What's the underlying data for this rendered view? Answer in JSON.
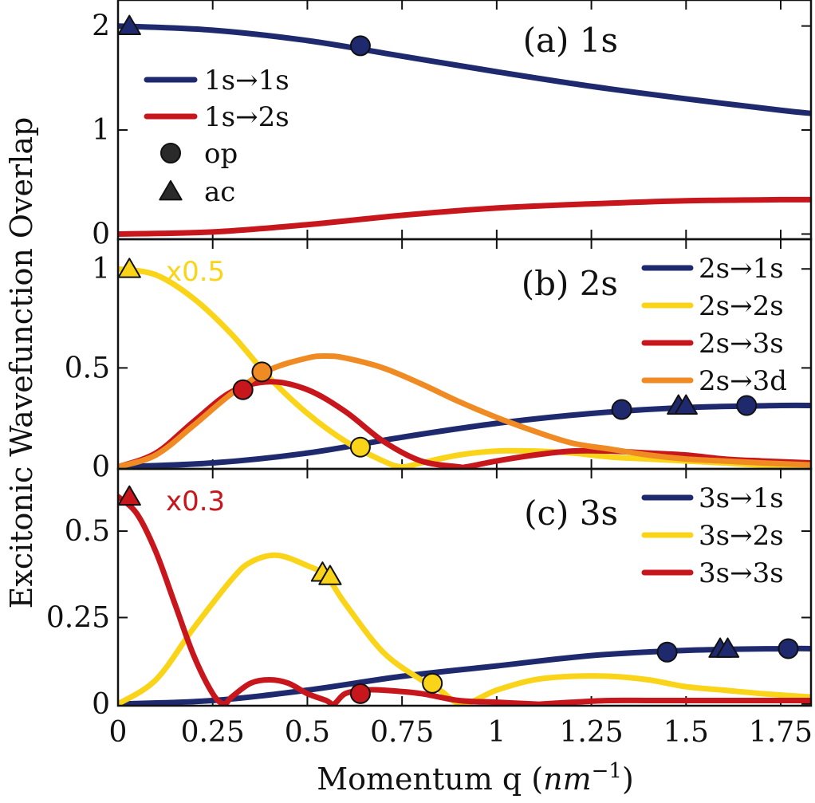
{
  "chart_data": {
    "type": "line",
    "x_axis": {
      "label": "Momentum q (nm⁻¹)",
      "label_prefix": "Momentum q ",
      "label_unit_base": "nm",
      "label_unit_exp": "−1",
      "range": [
        0,
        1.83
      ],
      "ticks": [
        0,
        0.25,
        0.5,
        0.75,
        1,
        1.25,
        1.5,
        1.75
      ],
      "tick_labels": [
        "0",
        "0.25",
        "0.5",
        "0.75",
        "1",
        "1.25",
        "1.5",
        "1.75"
      ]
    },
    "y_label": "Excitonic Wavefunction Overlap",
    "marker_legend": [
      {
        "shape": "circle",
        "label": "op"
      },
      {
        "shape": "triangle",
        "label": "ac"
      }
    ],
    "panels": [
      {
        "id": "a",
        "label": "(a)  1s",
        "ylim": [
          -0.05,
          2.25
        ],
        "yticks": [
          0,
          1,
          2
        ],
        "ytick_labels": [
          "0",
          "1",
          "2"
        ],
        "scale_note": null,
        "series": [
          {
            "name": "1s→1s",
            "color": "#1f2a6e",
            "x": [
              0,
              0.25,
              0.5,
              0.75,
              1,
              1.25,
              1.5,
              1.75,
              1.83
            ],
            "y": [
              2.0,
              1.96,
              1.86,
              1.71,
              1.56,
              1.42,
              1.3,
              1.19,
              1.16
            ],
            "markers": [
              {
                "shape": "circle",
                "x": 0.64,
                "y": 1.81
              },
              {
                "shape": "triangle",
                "x": 0.03,
                "y": 2.0
              }
            ]
          },
          {
            "name": "1s→2s",
            "color": "#c8161d",
            "x": [
              0,
              0.25,
              0.5,
              0.75,
              1,
              1.25,
              1.5,
              1.75,
              1.83
            ],
            "y": [
              0.0,
              0.02,
              0.09,
              0.18,
              0.25,
              0.29,
              0.32,
              0.33,
              0.33
            ],
            "markers": []
          }
        ]
      },
      {
        "id": "b",
        "label": "(b)  2s",
        "ylim": [
          -0.01,
          1.15
        ],
        "yticks": [
          0,
          0.5,
          1
        ],
        "ytick_labels": [
          "0",
          "0.5",
          "1"
        ],
        "scale_note": {
          "text": "x0.5",
          "color": "#f9d418"
        },
        "series": [
          {
            "name": "2s→1s",
            "color": "#1f2a6e",
            "x": [
              0,
              0.25,
              0.5,
              0.75,
              1,
              1.25,
              1.5,
              1.75,
              1.83
            ],
            "y": [
              0.0,
              0.02,
              0.07,
              0.15,
              0.22,
              0.27,
              0.3,
              0.31,
              0.31
            ],
            "markers": [
              {
                "shape": "circle",
                "x": 1.33,
                "y": 0.29
              },
              {
                "shape": "triangle",
                "x": 1.48,
                "y": 0.31
              },
              {
                "shape": "triangle",
                "x": 1.5,
                "y": 0.31
              },
              {
                "shape": "circle",
                "x": 1.66,
                "y": 0.31
              }
            ]
          },
          {
            "name": "2s→2s",
            "color": "#f9d418",
            "x": [
              0,
              0.1,
              0.2,
              0.3,
              0.4,
              0.5,
              0.6,
              0.7,
              0.75,
              0.8,
              0.9,
              1.0,
              1.1,
              1.2,
              1.3,
              1.4,
              1.5,
              1.6,
              1.7,
              1.83
            ],
            "y": [
              1.0,
              0.97,
              0.85,
              0.67,
              0.45,
              0.27,
              0.13,
              0.03,
              0.0,
              0.02,
              0.06,
              0.08,
              0.08,
              0.07,
              0.05,
              0.04,
              0.03,
              0.02,
              0.01,
              0.01
            ],
            "markers": [
              {
                "shape": "triangle",
                "x": 0.03,
                "y": 1.0
              },
              {
                "shape": "circle",
                "x": 0.64,
                "y": 0.1
              }
            ]
          },
          {
            "name": "2s→3s",
            "color": "#c8161d",
            "x": [
              0,
              0.1,
              0.2,
              0.3,
              0.4,
              0.5,
              0.6,
              0.7,
              0.8,
              0.9,
              0.92,
              1.0,
              1.1,
              1.2,
              1.3,
              1.4,
              1.5,
              1.6,
              1.7,
              1.83
            ],
            "y": [
              0.0,
              0.07,
              0.23,
              0.38,
              0.43,
              0.39,
              0.28,
              0.13,
              0.03,
              0.0,
              0.0,
              0.03,
              0.06,
              0.08,
              0.08,
              0.07,
              0.06,
              0.04,
              0.03,
              0.02
            ],
            "markers": [
              {
                "shape": "circle",
                "x": 0.33,
                "y": 0.39
              }
            ]
          },
          {
            "name": "2s→3d",
            "color": "#f08a22",
            "x": [
              0,
              0.1,
              0.2,
              0.3,
              0.4,
              0.5,
              0.55,
              0.6,
              0.7,
              0.8,
              0.9,
              1.0,
              1.1,
              1.2,
              1.3,
              1.4,
              1.5,
              1.6,
              1.7,
              1.83
            ],
            "y": [
              0.0,
              0.06,
              0.21,
              0.37,
              0.49,
              0.55,
              0.56,
              0.55,
              0.5,
              0.42,
              0.33,
              0.25,
              0.18,
              0.12,
              0.09,
              0.06,
              0.04,
              0.03,
              0.02,
              0.01
            ],
            "markers": [
              {
                "shape": "circle",
                "x": 0.38,
                "y": 0.48
              }
            ]
          }
        ]
      },
      {
        "id": "c",
        "label": "(c)  3s",
        "ylim": [
          -0.005,
          0.68
        ],
        "yticks": [
          0,
          0.25,
          0.5
        ],
        "ytick_labels": [
          "0",
          "0.25",
          "0.5"
        ],
        "scale_note": {
          "text": "x0.3",
          "color": "#c8161d"
        },
        "series": [
          {
            "name": "3s→1s",
            "color": "#1f2a6e",
            "x": [
              0,
              0.25,
              0.5,
              0.75,
              1,
              1.25,
              1.5,
              1.75,
              1.83
            ],
            "y": [
              0.0,
              0.01,
              0.04,
              0.08,
              0.11,
              0.14,
              0.155,
              0.16,
              0.16
            ],
            "markers": [
              {
                "shape": "circle",
                "x": 1.45,
                "y": 0.15
              },
              {
                "shape": "triangle",
                "x": 1.59,
                "y": 0.16
              },
              {
                "shape": "triangle",
                "x": 1.61,
                "y": 0.16
              },
              {
                "shape": "circle",
                "x": 1.77,
                "y": 0.16
              }
            ]
          },
          {
            "name": "3s→2s",
            "color": "#f9d418",
            "x": [
              0,
              0.1,
              0.2,
              0.3,
              0.35,
              0.42,
              0.5,
              0.55,
              0.6,
              0.7,
              0.8,
              0.85,
              0.91,
              1.0,
              1.1,
              1.2,
              1.3,
              1.4,
              1.5,
              1.6,
              1.7,
              1.83
            ],
            "y": [
              0.0,
              0.07,
              0.22,
              0.36,
              0.41,
              0.43,
              0.4,
              0.37,
              0.29,
              0.15,
              0.07,
              0.04,
              0.0,
              0.04,
              0.07,
              0.08,
              0.08,
              0.07,
              0.05,
              0.04,
              0.03,
              0.02
            ],
            "markers": [
              {
                "shape": "triangle",
                "x": 0.54,
                "y": 0.38
              },
              {
                "shape": "triangle",
                "x": 0.56,
                "y": 0.37
              },
              {
                "shape": "circle",
                "x": 0.83,
                "y": 0.06
              }
            ]
          },
          {
            "name": "3s→3s",
            "color": "#c8161d",
            "x": [
              0,
              0.05,
              0.1,
              0.15,
              0.2,
              0.25,
              0.28,
              0.3,
              0.35,
              0.4,
              0.45,
              0.5,
              0.55,
              0.57,
              0.6,
              0.65,
              0.7,
              0.8,
              0.9,
              1.0,
              1.1,
              1.12,
              1.2,
              1.3,
              1.4,
              1.5,
              1.6,
              1.7,
              1.83
            ],
            "y": [
              0.6,
              0.55,
              0.44,
              0.29,
              0.14,
              0.03,
              0.0,
              0.02,
              0.06,
              0.07,
              0.06,
              0.03,
              0.01,
              0.0,
              0.03,
              0.04,
              0.04,
              0.03,
              0.01,
              0.005,
              0.0,
              0.0,
              0.005,
              0.01,
              0.01,
              0.01,
              0.01,
              0.01,
              0.01
            ],
            "markers": [
              {
                "shape": "triangle",
                "x": 0.03,
                "y": 0.6
              },
              {
                "shape": "circle",
                "x": 0.64,
                "y": 0.03
              }
            ]
          }
        ]
      }
    ]
  }
}
